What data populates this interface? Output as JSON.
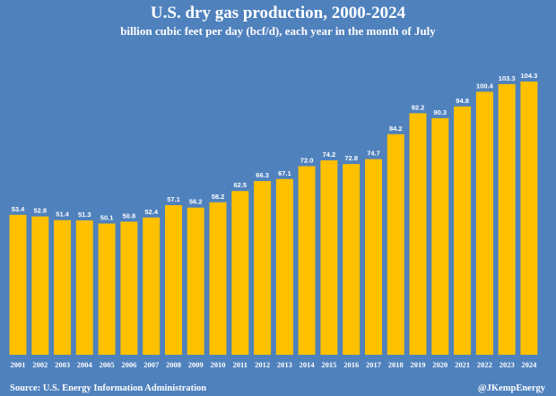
{
  "title": "U.S. dry gas production, 2000-2024",
  "subtitle": "billion cubic feet per day (bcf/d), each year in the month of July",
  "source": "Source: U.S. Energy Information Administration",
  "credit": "@JKempEnergy",
  "colors": {
    "background": "#4f81bd",
    "bar": "#ffc000",
    "text": "#ffffff"
  },
  "chart_data": {
    "type": "bar",
    "title": "U.S. dry gas production, 2000-2024",
    "subtitle": "billion cubic feet per day (bcf/d), each year in the month of July",
    "xlabel": "",
    "ylabel": "",
    "categories": [
      "2001",
      "2002",
      "2003",
      "2004",
      "2005",
      "2006",
      "2007",
      "2008",
      "2009",
      "2010",
      "2011",
      "2012",
      "2013",
      "2014",
      "2015",
      "2016",
      "2017",
      "2018",
      "2019",
      "2020",
      "2021",
      "2022",
      "2023",
      "2024"
    ],
    "values": [
      53.4,
      52.8,
      51.4,
      51.3,
      50.1,
      50.8,
      52.4,
      57.1,
      56.2,
      58.2,
      62.5,
      66.3,
      67.1,
      72.0,
      74.2,
      72.8,
      74.7,
      84.2,
      92.2,
      90.3,
      94.8,
      100.4,
      103.3,
      104.3
    ],
    "value_labels": [
      "53.4",
      "52.8",
      "51.4",
      "51.3",
      "50.1",
      "50.8",
      "52.4",
      "57.1",
      "56.2",
      "58.2",
      "62.5",
      "66.3",
      "67.1",
      "72.0",
      "74.2",
      "72.8",
      "74.7",
      "84.2",
      "92.2",
      "90.3",
      "94.8",
      "100.4",
      "103.3",
      "104.3"
    ],
    "ylim": [
      0,
      104.3
    ],
    "grid": false,
    "legend": "none"
  }
}
